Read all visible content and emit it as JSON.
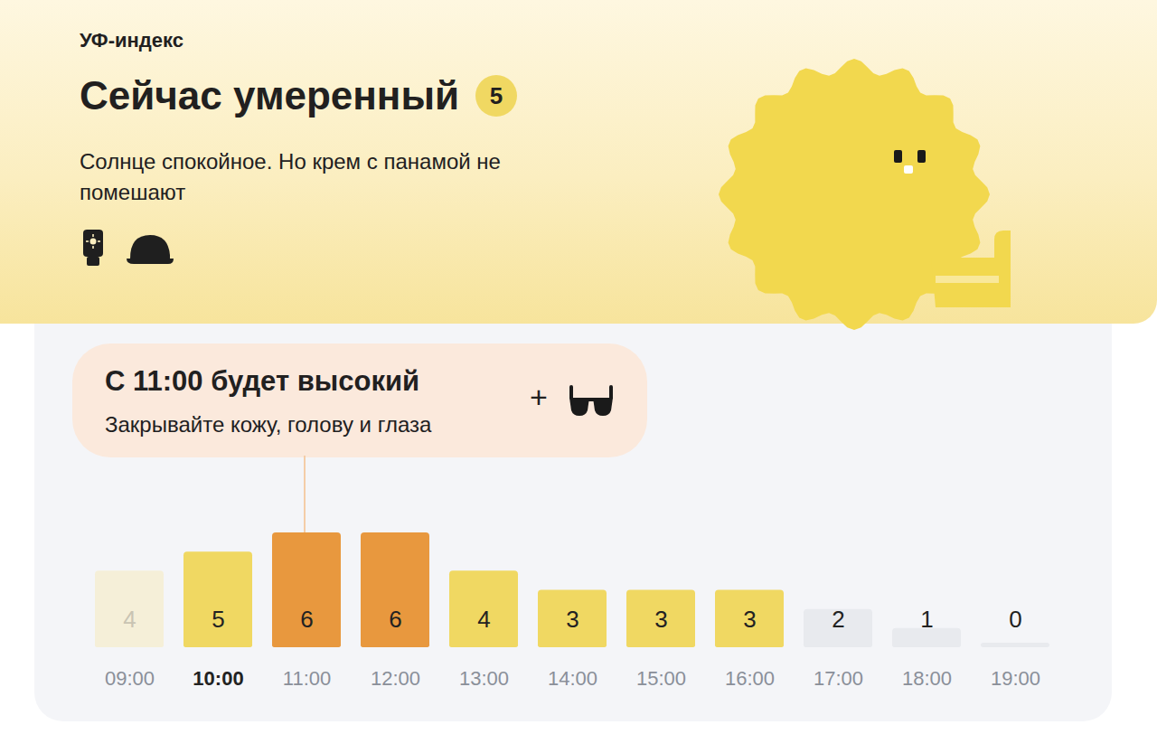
{
  "header": {
    "label": "УФ-индекс",
    "title": "Сейчас умеренный",
    "badge": 5,
    "text": "Солнце спокойное. Но крем с панамой не помешают"
  },
  "callout": {
    "title": "С 11:00 будет высокий",
    "text": "Закрывайте кожу, голову и глаза",
    "plus": "+",
    "target": "11:00"
  },
  "current_time": "10:00",
  "chart_data": {
    "type": "bar",
    "categories": [
      "09:00",
      "10:00",
      "11:00",
      "12:00",
      "13:00",
      "14:00",
      "15:00",
      "16:00",
      "17:00",
      "18:00",
      "19:00"
    ],
    "values": [
      4,
      5,
      6,
      6,
      4,
      3,
      3,
      3,
      2,
      1,
      0
    ],
    "colors": [
      "#f5efd8",
      "#f0d862",
      "#e8983e",
      "#e8983e",
      "#f0d862",
      "#f0d862",
      "#f0d862",
      "#f0d862",
      "#e8eaee",
      "#e8eaee",
      "#e8eaee"
    ],
    "ylim": [
      0,
      6
    ],
    "data_labels": true,
    "tick_labels": "x"
  }
}
